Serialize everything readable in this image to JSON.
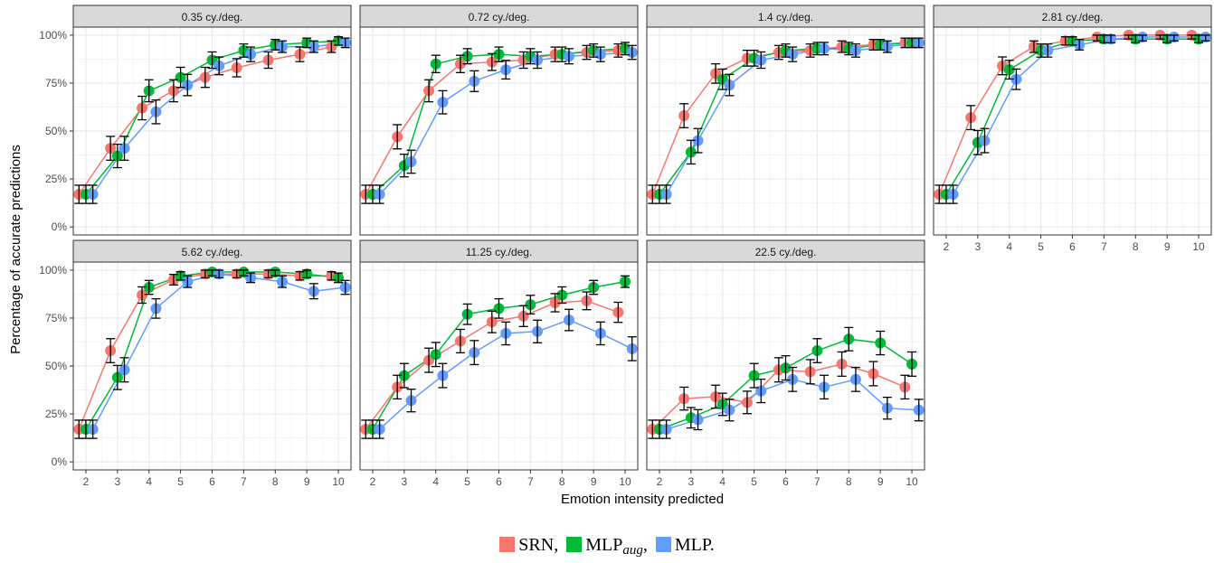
{
  "chart_data": {
    "type": "line",
    "xlabel": "Emotion intensity predicted",
    "ylabel": "Percentage of accurate predictions",
    "x": [
      2,
      3,
      4,
      5,
      6,
      7,
      8,
      9,
      10
    ],
    "ylim": [
      0,
      1
    ],
    "yticks": [
      0,
      0.25,
      0.5,
      0.75,
      1
    ],
    "ytick_labels": [
      "0%",
      "25%",
      "50%",
      "75%",
      "100%"
    ],
    "grid": true,
    "legend_position": "bottom",
    "legend": {
      "items": [
        {
          "key": "srn",
          "label": "SRN,",
          "color": "#F8766D"
        },
        {
          "key": "mlp_aug",
          "label": "MLP",
          "sub": "aug",
          "suffix": ",",
          "color": "#00BA38"
        },
        {
          "key": "mlp",
          "label": "MLP.",
          "color": "#619CFF"
        }
      ]
    },
    "panels": [
      {
        "title": "0.35 cy./deg.",
        "series": [
          {
            "key": "srn",
            "values": [
              0.17,
              0.41,
              0.62,
              0.71,
              0.78,
              0.83,
              0.87,
              0.9,
              0.94
            ]
          },
          {
            "key": "mlp_aug",
            "values": [
              0.17,
              0.37,
              0.71,
              0.78,
              0.87,
              0.92,
              0.95,
              0.96,
              0.97
            ]
          },
          {
            "key": "mlp",
            "values": [
              0.17,
              0.41,
              0.6,
              0.74,
              0.84,
              0.9,
              0.94,
              0.94,
              0.96
            ]
          }
        ]
      },
      {
        "title": "0.72 cy./deg.",
        "series": [
          {
            "key": "srn",
            "values": [
              0.17,
              0.47,
              0.71,
              0.85,
              0.86,
              0.87,
              0.9,
              0.91,
              0.92
            ]
          },
          {
            "key": "mlp_aug",
            "values": [
              0.17,
              0.32,
              0.85,
              0.89,
              0.9,
              0.89,
              0.9,
              0.92,
              0.93
            ]
          },
          {
            "key": "mlp",
            "values": [
              0.17,
              0.34,
              0.65,
              0.76,
              0.82,
              0.87,
              0.89,
              0.9,
              0.91
            ]
          }
        ]
      },
      {
        "title": "1.4 cy./deg.",
        "series": [
          {
            "key": "srn",
            "values": [
              0.17,
              0.58,
              0.8,
              0.88,
              0.91,
              0.92,
              0.94,
              0.95,
              0.96
            ]
          },
          {
            "key": "mlp_aug",
            "values": [
              0.17,
              0.39,
              0.77,
              0.88,
              0.92,
              0.93,
              0.93,
              0.95,
              0.96
            ]
          },
          {
            "key": "mlp",
            "values": [
              0.17,
              0.45,
              0.74,
              0.87,
              0.9,
              0.93,
              0.92,
              0.94,
              0.96
            ]
          }
        ]
      },
      {
        "title": "2.81 cy./deg.",
        "series": [
          {
            "key": "srn",
            "values": [
              0.17,
              0.57,
              0.84,
              0.94,
              0.97,
              0.99,
              1.0,
              1.0,
              1.0
            ]
          },
          {
            "key": "mlp_aug",
            "values": [
              0.17,
              0.44,
              0.82,
              0.92,
              0.97,
              0.98,
              0.98,
              0.98,
              0.98
            ]
          },
          {
            "key": "mlp",
            "values": [
              0.17,
              0.45,
              0.77,
              0.92,
              0.95,
              0.98,
              0.99,
              0.99,
              0.99
            ]
          }
        ]
      },
      {
        "title": "5.62 cy./deg.",
        "series": [
          {
            "key": "srn",
            "values": [
              0.17,
              0.58,
              0.87,
              0.95,
              0.98,
              0.98,
              0.98,
              0.97,
              0.97
            ]
          },
          {
            "key": "mlp_aug",
            "values": [
              0.17,
              0.44,
              0.91,
              0.97,
              0.99,
              0.99,
              0.99,
              0.98,
              0.96
            ]
          },
          {
            "key": "mlp",
            "values": [
              0.17,
              0.48,
              0.8,
              0.94,
              0.98,
              0.96,
              0.94,
              0.89,
              0.91
            ]
          }
        ]
      },
      {
        "title": "11.25 cy./deg.",
        "series": [
          {
            "key": "srn",
            "values": [
              0.17,
              0.39,
              0.53,
              0.63,
              0.73,
              0.76,
              0.83,
              0.84,
              0.78
            ]
          },
          {
            "key": "mlp_aug",
            "values": [
              0.17,
              0.45,
              0.56,
              0.77,
              0.8,
              0.82,
              0.87,
              0.91,
              0.94
            ]
          },
          {
            "key": "mlp",
            "values": [
              0.17,
              0.32,
              0.45,
              0.57,
              0.67,
              0.68,
              0.74,
              0.67,
              0.59
            ]
          }
        ]
      },
      {
        "title": "22.5 cy./deg.",
        "series": [
          {
            "key": "srn",
            "values": [
              0.17,
              0.33,
              0.34,
              0.31,
              0.48,
              0.47,
              0.51,
              0.46,
              0.39
            ]
          },
          {
            "key": "mlp_aug",
            "values": [
              0.17,
              0.23,
              0.3,
              0.45,
              0.49,
              0.58,
              0.64,
              0.62,
              0.51
            ]
          },
          {
            "key": "mlp",
            "values": [
              0.17,
              0.22,
              0.27,
              0.37,
              0.43,
              0.39,
              0.43,
              0.28,
              0.27
            ]
          }
        ]
      }
    ]
  }
}
